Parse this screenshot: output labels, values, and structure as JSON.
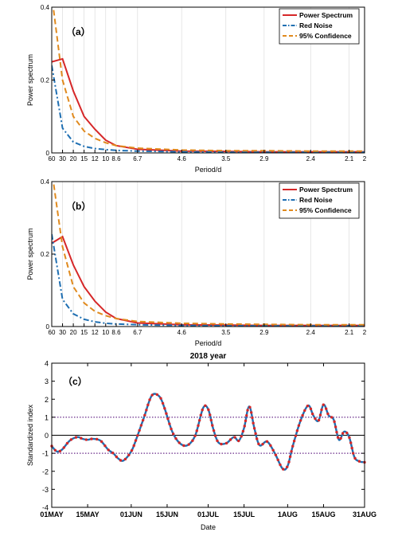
{
  "colors": {
    "power": "#d62728",
    "red_noise": "#1f6fb2",
    "confidence": "#e08a1e",
    "threshold": "#6a2c8a",
    "zero": "#000000",
    "grid": "#dcdcdc"
  },
  "chart_data": [
    {
      "type": "line",
      "panel_label": "（a）",
      "xlabel": "Period/d",
      "ylabel": "Power spectrum",
      "x_scale": "reciprocal",
      "xlim": [
        60,
        2
      ],
      "ylim": [
        0,
        0.4
      ],
      "yticks": [
        0,
        0.2,
        0.4
      ],
      "yticklabels": [
        "0",
        "0.2",
        "0.4"
      ],
      "xticks": [
        60,
        30,
        20,
        15,
        12,
        10,
        8.6,
        6.7,
        4.6,
        3.5,
        2.9,
        2.4,
        2.1,
        2
      ],
      "xticklabels": [
        "60",
        "30",
        "20",
        "15",
        "12",
        "10",
        "8.6",
        "6.7",
        "4.6",
        "3.5",
        "2.9",
        "2.4",
        "2.1",
        "2"
      ],
      "grid": true,
      "legend_position": "top-right",
      "series": [
        {
          "name": "Power Spectrum",
          "style": "solid",
          "color_key": "power",
          "x": [
            60,
            30,
            20,
            15,
            12,
            10,
            8.6,
            6.7,
            4.6,
            3.5,
            2.9,
            2.4,
            2.1,
            2
          ],
          "y": [
            0.25,
            0.258,
            0.17,
            0.1,
            0.065,
            0.035,
            0.02,
            0.01,
            0.005,
            0.004,
            0.003,
            0.003,
            0.003,
            0.003
          ]
        },
        {
          "name": "Red Noise",
          "style": "dashdot",
          "color_key": "red_noise",
          "x": [
            60,
            30,
            20,
            15,
            12,
            10,
            8.6,
            6.7,
            4.6,
            3.5,
            2.9,
            2.4,
            2.1,
            2
          ],
          "y": [
            0.24,
            0.068,
            0.03,
            0.018,
            0.012,
            0.009,
            0.007,
            0.005,
            0.003,
            0.002,
            0.002,
            0.002,
            0.002,
            0.002
          ]
        },
        {
          "name": "95% Confidence",
          "style": "dashed",
          "color_key": "confidence",
          "x": [
            60,
            57,
            30,
            20,
            15,
            12,
            10,
            8.6,
            6.7,
            4.6,
            3.5,
            2.9,
            2.4,
            2.1,
            2
          ],
          "y": [
            0.4,
            0.42,
            0.2,
            0.1,
            0.06,
            0.04,
            0.028,
            0.02,
            0.013,
            0.008,
            0.006,
            0.006,
            0.005,
            0.005,
            0.005
          ]
        }
      ]
    },
    {
      "type": "line",
      "panel_label": "（b）",
      "xlabel": "Period/d",
      "ylabel": "Power spectrum",
      "x_scale": "reciprocal",
      "xlim": [
        60,
        2
      ],
      "ylim": [
        0,
        0.4
      ],
      "yticks": [
        0,
        0.2,
        0.4
      ],
      "yticklabels": [
        "0",
        "0.2",
        "0.4"
      ],
      "xticks": [
        60,
        30,
        20,
        15,
        12,
        10,
        8.6,
        6.7,
        4.6,
        3.5,
        2.9,
        2.4,
        2.1,
        2
      ],
      "xticklabels": [
        "60",
        "30",
        "20",
        "15",
        "12",
        "10",
        "8.6",
        "6.7",
        "4.6",
        "3.5",
        "2.9",
        "2.4",
        "2.1",
        "2"
      ],
      "grid": true,
      "legend_position": "top-right",
      "series": [
        {
          "name": "Power Spectrum",
          "style": "solid",
          "color_key": "power",
          "x": [
            60,
            30,
            20,
            15,
            12,
            10,
            8.6,
            6.7,
            4.6,
            3.5,
            2.9,
            2.4,
            2.1,
            2
          ],
          "y": [
            0.23,
            0.248,
            0.17,
            0.11,
            0.07,
            0.04,
            0.022,
            0.01,
            0.005,
            0.004,
            0.003,
            0.003,
            0.003,
            0.003
          ]
        },
        {
          "name": "Red Noise",
          "style": "dashdot",
          "color_key": "red_noise",
          "x": [
            60,
            30,
            20,
            15,
            12,
            10,
            8.6,
            6.7,
            4.6,
            3.5,
            2.9,
            2.4,
            2.1,
            2
          ],
          "y": [
            0.255,
            0.075,
            0.035,
            0.02,
            0.013,
            0.009,
            0.007,
            0.005,
            0.003,
            0.002,
            0.002,
            0.002,
            0.002,
            0.002
          ]
        },
        {
          "name": "95% Confidence",
          "style": "dashed",
          "color_key": "confidence",
          "x": [
            60,
            57,
            30,
            20,
            15,
            12,
            10,
            8.6,
            6.7,
            4.6,
            3.5,
            2.9,
            2.4,
            2.1,
            2
          ],
          "y": [
            0.4,
            0.42,
            0.22,
            0.11,
            0.065,
            0.042,
            0.03,
            0.022,
            0.014,
            0.009,
            0.007,
            0.006,
            0.005,
            0.005,
            0.005
          ]
        }
      ]
    },
    {
      "type": "line",
      "title": "2018 year",
      "panel_label": "（c）",
      "xlabel": "Date",
      "ylabel": "Standardized index",
      "ylim": [
        -4,
        4
      ],
      "yticks": [
        -4,
        -3,
        -2,
        -1,
        0,
        1,
        2,
        3,
        4
      ],
      "yticklabels": [
        "-4",
        "-3",
        "-2",
        "-1",
        "0",
        "1",
        "2",
        "3",
        "4"
      ],
      "xlim": [
        "2018-05-01",
        "2018-08-31"
      ],
      "xticks": [
        "2018-05-01",
        "2018-05-15",
        "2018-06-01",
        "2018-06-15",
        "2018-07-01",
        "2018-07-15",
        "2018-08-01",
        "2018-08-15",
        "2018-08-31"
      ],
      "xticklabels": [
        "01MAY",
        "15MAY",
        "01JUN",
        "15JUN",
        "01JUL",
        "15JUL",
        "1AUG",
        "15AUG",
        "31AUG"
      ],
      "grid": false,
      "reference_lines": [
        {
          "y": 1,
          "style": "dotted",
          "color_key": "threshold"
        },
        {
          "y": -1,
          "style": "dotted",
          "color_key": "threshold"
        },
        {
          "y": 0,
          "style": "solid",
          "color_key": "zero"
        }
      ],
      "series": [
        {
          "style": "solid+markers",
          "color_key": "red_noise",
          "marker_color_key": "power",
          "x": [
            "2018-05-01",
            "2018-05-03",
            "2018-05-05",
            "2018-05-08",
            "2018-05-11",
            "2018-05-13",
            "2018-05-15",
            "2018-05-17",
            "2018-05-20",
            "2018-05-23",
            "2018-05-25",
            "2018-05-27",
            "2018-05-29",
            "2018-06-01",
            "2018-06-03",
            "2018-06-06",
            "2018-06-09",
            "2018-06-12",
            "2018-06-14",
            "2018-06-17",
            "2018-06-20",
            "2018-06-23",
            "2018-06-26",
            "2018-06-29",
            "2018-07-01",
            "2018-07-03",
            "2018-07-05",
            "2018-07-08",
            "2018-07-11",
            "2018-07-13",
            "2018-07-15",
            "2018-07-17",
            "2018-07-19",
            "2018-07-21",
            "2018-07-24",
            "2018-07-27",
            "2018-07-30",
            "2018-08-01",
            "2018-08-03",
            "2018-08-06",
            "2018-08-09",
            "2018-08-11",
            "2018-08-13",
            "2018-08-15",
            "2018-08-17",
            "2018-08-19",
            "2018-08-21",
            "2018-08-23",
            "2018-08-25",
            "2018-08-27",
            "2018-08-29",
            "2018-08-31"
          ],
          "y": [
            -0.6,
            -0.9,
            -0.8,
            -0.3,
            -0.1,
            -0.2,
            -0.25,
            -0.2,
            -0.3,
            -0.8,
            -1.0,
            -1.3,
            -1.4,
            -0.9,
            -0.2,
            1.0,
            2.2,
            2.15,
            1.5,
            0.2,
            -0.45,
            -0.55,
            0.0,
            1.5,
            1.45,
            0.35,
            -0.4,
            -0.45,
            -0.1,
            -0.3,
            0.4,
            1.6,
            0.4,
            -0.55,
            -0.35,
            -1.0,
            -1.85,
            -1.7,
            -0.6,
            0.8,
            1.65,
            1.1,
            0.8,
            1.7,
            1.1,
            0.85,
            -0.25,
            0.2,
            -0.1,
            -1.2,
            -1.45,
            -1.5
          ]
        }
      ]
    }
  ]
}
